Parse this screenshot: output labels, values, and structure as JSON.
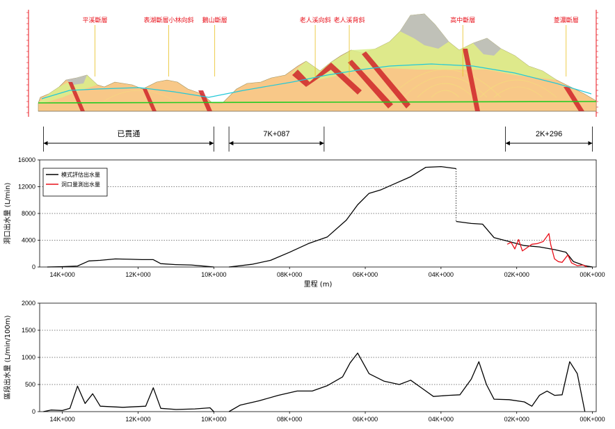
{
  "geology": {
    "fault_labels": [
      {
        "text": "平溪斷層",
        "pos": 0.117
      },
      {
        "text": "表湖斷層小林向斜",
        "pos": 0.247
      },
      {
        "text": "鵝山斷層",
        "pos": 0.328
      },
      {
        "text": "老人溪向斜",
        "pos": 0.505
      },
      {
        "text": "老人溪背斜",
        "pos": 0.565
      },
      {
        "text": "高中斷層",
        "pos": 0.765
      },
      {
        "text": "菱濃斷層",
        "pos": 0.947
      }
    ],
    "colors": {
      "sky": "#ffffff",
      "rock_green": "#d9ef8c",
      "rock_orange": "#f8c888",
      "rock_gray": "#bdbdbd",
      "fault": "#d0252a",
      "water": "#22c8d8",
      "tunnel": "#22cc22"
    }
  },
  "ranges": [
    {
      "label": "已貫通",
      "from_km": 14.5,
      "to_km": 10.0
    },
    {
      "label": "7K+087",
      "from_km": 9.6,
      "to_km": 7.087
    },
    {
      "label": "2K+296",
      "from_km": 2.296,
      "to_km": 0.0
    }
  ],
  "chart_data": [
    {
      "type": "line",
      "ylabel": "洞口出水量 (L/min)",
      "xlabel": "里程 (m)",
      "ylim": [
        0,
        16000
      ],
      "yticks": [
        0,
        4000,
        8000,
        12000,
        16000
      ],
      "xlim_km": [
        14.6,
        -0.1
      ],
      "xticks": [
        {
          "km": 14,
          "label": "14K+000"
        },
        {
          "km": 12,
          "label": "12K+000"
        },
        {
          "km": 10,
          "label": "10K+000"
        },
        {
          "km": 8,
          "label": "08K+000"
        },
        {
          "km": 6,
          "label": "06K+000"
        },
        {
          "km": 4,
          "label": "04K+000"
        },
        {
          "km": 2,
          "label": "02K+000"
        },
        {
          "km": 0,
          "label": "00K+000"
        }
      ],
      "grid": "horizontal-dotted",
      "legend_position": "top-left",
      "series": [
        {
          "name": "模式評估出水量",
          "color": "#000000",
          "segments": [
            [
              [
                14.4,
                0
              ],
              [
                14.0,
                50
              ],
              [
                13.6,
                150
              ],
              [
                13.3,
                900
              ],
              [
                13.0,
                1000
              ],
              [
                12.6,
                1200
              ],
              [
                12.2,
                1150
              ],
              [
                11.9,
                1100
              ],
              [
                11.6,
                1100
              ],
              [
                11.4,
                500
              ],
              [
                11.0,
                350
              ],
              [
                10.6,
                300
              ],
              [
                10.2,
                100
              ],
              [
                10.0,
                0
              ]
            ],
            [
              [
                9.6,
                0
              ],
              [
                9.0,
                400
              ],
              [
                8.5,
                1000
              ],
              [
                8.0,
                2200
              ],
              [
                7.5,
                3500
              ],
              [
                7.0,
                4500
              ],
              [
                6.5,
                7000
              ],
              [
                6.2,
                9300
              ],
              [
                5.9,
                11000
              ],
              [
                5.6,
                11500
              ],
              [
                5.2,
                12500
              ],
              [
                4.8,
                13500
              ],
              [
                4.4,
                14900
              ],
              [
                4.0,
                15000
              ],
              [
                3.6,
                14700
              ]
            ],
            [
              [
                3.6,
                6800
              ],
              [
                3.2,
                6500
              ],
              [
                2.9,
                6400
              ],
              [
                2.6,
                4400
              ],
              [
                2.2,
                3800
              ],
              [
                1.8,
                3200
              ],
              [
                1.4,
                3000
              ],
              [
                1.0,
                2600
              ],
              [
                0.7,
                2200
              ],
              [
                0.5,
                800
              ],
              [
                0.2,
                200
              ],
              [
                0.0,
                0
              ]
            ]
          ],
          "dotted_connector": [
            [
              3.6,
              14700
            ],
            [
              3.6,
              6800
            ]
          ]
        },
        {
          "name": "洞口量測出水量",
          "color": "#e8101a",
          "segments": [
            [
              [
                2.25,
                3400
              ],
              [
                2.15,
                3700
              ],
              [
                2.05,
                2700
              ],
              [
                1.95,
                4100
              ],
              [
                1.85,
                2400
              ],
              [
                1.75,
                2800
              ],
              [
                1.6,
                3400
              ],
              [
                1.45,
                3500
              ],
              [
                1.3,
                3800
              ],
              [
                1.2,
                4600
              ],
              [
                1.15,
                5000
              ],
              [
                1.1,
                3300
              ],
              [
                1.0,
                1200
              ],
              [
                0.9,
                800
              ],
              [
                0.8,
                700
              ],
              [
                0.65,
                1800
              ],
              [
                0.55,
                600
              ],
              [
                0.4,
                200
              ],
              [
                0.25,
                300
              ],
              [
                0.15,
                0
              ]
            ]
          ]
        }
      ]
    },
    {
      "type": "line",
      "ylabel": "區段出水量 (L/min/100m)",
      "ylim": [
        0,
        2000
      ],
      "yticks": [
        0,
        500,
        1000,
        1500,
        2000
      ],
      "xlim_km": [
        14.6,
        -0.1
      ],
      "xticks": [
        {
          "km": 14,
          "label": "14K+000"
        },
        {
          "km": 12,
          "label": "12K+000"
        },
        {
          "km": 10,
          "label": "10K+000"
        },
        {
          "km": 8,
          "label": "08K+000"
        },
        {
          "km": 6,
          "label": "06K+000"
        },
        {
          "km": 4,
          "label": "04K+000"
        },
        {
          "km": 2,
          "label": "02K+000"
        },
        {
          "km": 0,
          "label": "00K+000"
        }
      ],
      "grid": "horizontal-dotted",
      "series": [
        {
          "name": "",
          "color": "#000000",
          "segments": [
            [
              [
                14.5,
                0
              ],
              [
                14.3,
                30
              ],
              [
                14.0,
                20
              ],
              [
                13.8,
                60
              ],
              [
                13.6,
                470
              ],
              [
                13.4,
                150
              ],
              [
                13.2,
                330
              ],
              [
                13.0,
                100
              ],
              [
                12.4,
                80
              ],
              [
                11.8,
                100
              ],
              [
                11.6,
                440
              ],
              [
                11.4,
                60
              ],
              [
                11.0,
                40
              ],
              [
                10.5,
                50
              ],
              [
                10.1,
                70
              ],
              [
                10.0,
                0
              ]
            ],
            [
              [
                9.6,
                0
              ],
              [
                9.3,
                120
              ],
              [
                8.8,
                200
              ],
              [
                8.3,
                300
              ],
              [
                7.8,
                380
              ],
              [
                7.4,
                380
              ],
              [
                7.0,
                480
              ],
              [
                6.6,
                640
              ],
              [
                6.4,
                900
              ],
              [
                6.2,
                1080
              ],
              [
                5.9,
                700
              ],
              [
                5.5,
                560
              ],
              [
                5.1,
                500
              ],
              [
                4.8,
                580
              ],
              [
                4.5,
                430
              ],
              [
                4.2,
                280
              ],
              [
                3.8,
                300
              ],
              [
                3.5,
                310
              ],
              [
                3.2,
                600
              ],
              [
                3.0,
                920
              ],
              [
                2.8,
                500
              ],
              [
                2.6,
                230
              ],
              [
                2.2,
                220
              ],
              [
                1.8,
                180
              ],
              [
                1.6,
                100
              ],
              [
                1.4,
                300
              ],
              [
                1.2,
                380
              ],
              [
                1.0,
                300
              ],
              [
                0.8,
                310
              ],
              [
                0.6,
                920
              ],
              [
                0.4,
                700
              ],
              [
                0.2,
                0
              ]
            ]
          ]
        }
      ]
    }
  ]
}
